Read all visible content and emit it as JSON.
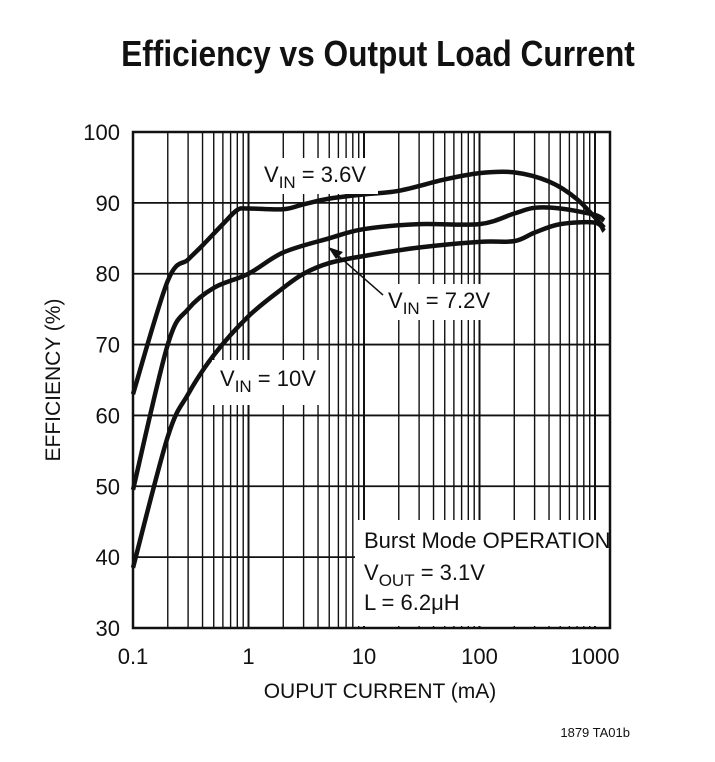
{
  "chart_data": {
    "type": "line",
    "title": "Efficiency vs Output Load Current",
    "xlabel": "OUPUT CURRENT (mA)",
    "ylabel": "EFFICIENCY (%)",
    "xscale": "log",
    "xlim": [
      0.1,
      1400
    ],
    "ylim": [
      30,
      100
    ],
    "grid": true,
    "xticks": [
      "0.1",
      "1",
      "10",
      "100",
      "1000"
    ],
    "yticks": [
      "30",
      "40",
      "50",
      "60",
      "70",
      "80",
      "90",
      "100"
    ],
    "series": [
      {
        "name": "VIN = 3.6V",
        "label_main": "V",
        "label_sub": "IN",
        "label_rest": " = 3.6V",
        "x": [
          0.1,
          0.2,
          0.3,
          0.4,
          0.6,
          0.8,
          1,
          2,
          3,
          5,
          10,
          20,
          50,
          100,
          200,
          400,
          700,
          1200
        ],
        "y": [
          63,
          79,
          82,
          84,
          87,
          89,
          89.2,
          89.1,
          89.8,
          90.6,
          91.2,
          91.7,
          93.3,
          94.2,
          94.3,
          93,
          90.5,
          86.5
        ]
      },
      {
        "name": "VIN = 7.2V",
        "label_main": "V",
        "label_sub": "IN",
        "label_rest": " = 7.2V",
        "x": [
          0.1,
          0.2,
          0.3,
          0.5,
          1,
          2,
          5,
          10,
          30,
          100,
          200,
          300,
          500,
          1000,
          1200
        ],
        "y": [
          49.5,
          70,
          75,
          78,
          80,
          83,
          85,
          86.3,
          87,
          87,
          88.5,
          89.3,
          89.2,
          88.3,
          87.5
        ]
      },
      {
        "name": "VIN = 10V",
        "label_main": "V",
        "label_sub": "IN",
        "label_rest": " = 10V",
        "x": [
          0.1,
          0.2,
          0.3,
          0.5,
          1,
          2,
          3,
          5,
          10,
          30,
          100,
          200,
          300,
          500,
          1000,
          1200
        ],
        "y": [
          38.5,
          57,
          63,
          68.5,
          74,
          78,
          80,
          81.5,
          82.5,
          83.7,
          84.5,
          84.6,
          85.8,
          87,
          87.2,
          86
        ]
      }
    ],
    "annotation": {
      "line1": "Burst Mode OPERATION",
      "line2_main": "V",
      "line2_sub": "OUT",
      "line2_rest": " = 3.1V",
      "line3": "L = 6.2μH"
    },
    "footer": "1879 TA01b",
    "line_color": "#111111"
  }
}
